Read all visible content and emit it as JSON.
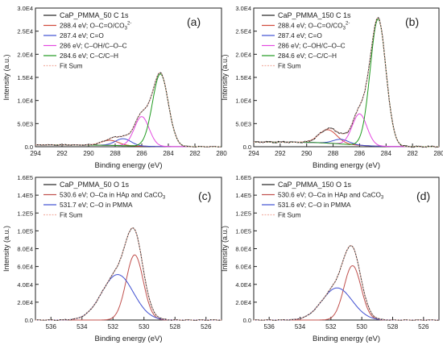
{
  "chart_data": [
    {
      "type": "line",
      "panel_label": "(a)",
      "xlabel": "Binding energy (eV)",
      "ylabel": "Intensity (a.u.)",
      "xlim": [
        294,
        280
      ],
      "ylim": [
        0,
        30000
      ],
      "xticks": [
        294,
        292,
        290,
        288,
        286,
        284,
        282,
        280
      ],
      "yticks": [
        0,
        5000,
        10000,
        15000,
        20000,
        25000,
        30000
      ],
      "ytick_labels": [
        "0.0",
        "5.0E3",
        "1.0E4",
        "1.5E4",
        "2.0E4",
        "2.5E4",
        "3.0E4"
      ],
      "legend_title": "CaP_PMMA_50 C 1s",
      "legend_loc": "top-left",
      "series": [
        {
          "name": "288.4 eV; O–C=O/CO",
          "name_sup": "3",
          "name_sup2": "2-",
          "color": "#d14a3b",
          "center": 288.4,
          "amplitude": 1100,
          "fwhm": 1.5,
          "draw": true
        },
        {
          "name": "287.4 eV; C=O",
          "color": "#3f4fd1",
          "center": 287.4,
          "amplitude": 1500,
          "fwhm": 1.4,
          "draw": true
        },
        {
          "name": "286 eV; C–OH/C–O–C",
          "color": "#e44ae0",
          "center": 286.0,
          "amplitude": 6400,
          "fwhm": 1.3,
          "draw": true
        },
        {
          "name": "284.6 eV; C–C/C–H",
          "color": "#1f9a1f",
          "center": 284.6,
          "amplitude": 15700,
          "fwhm": 1.4,
          "draw": true
        },
        {
          "name": "Fit Sum",
          "color": "#f2b4a8",
          "is_sum": true
        }
      ],
      "data_color": "#222222",
      "data_label": "CaP_PMMA_50 C 1s"
    },
    {
      "type": "line",
      "panel_label": "(b)",
      "xlabel": "Binding energy (eV)",
      "ylabel": "Intensity (a.u.)",
      "xlim": [
        294,
        280
      ],
      "ylim": [
        0,
        30000
      ],
      "xticks": [
        294,
        292,
        290,
        288,
        286,
        284,
        282,
        280
      ],
      "yticks": [
        0,
        5000,
        10000,
        15000,
        20000,
        25000,
        30000
      ],
      "ytick_labels": [
        "0.0",
        "5.0E3",
        "1.0E4",
        "1.5E4",
        "2.0E4",
        "2.5E4",
        "3.0E4"
      ],
      "legend_title": "CaP_PMMA_150 C 1s",
      "legend_loc": "top-left",
      "series": [
        {
          "name": "288.4 eV; O–C=O/CO",
          "name_sup": "3",
          "name_sup2": "2-",
          "color": "#d14a3b",
          "center": 288.4,
          "amplitude": 2900,
          "fwhm": 1.6,
          "draw": true
        },
        {
          "name": "287.4 eV; C=O",
          "color": "#3f4fd1",
          "center": 287.4,
          "amplitude": 1000,
          "fwhm": 1.4,
          "draw": true
        },
        {
          "name": "286 eV; C–OH/C–O–C",
          "color": "#e44ae0",
          "center": 286.0,
          "amplitude": 6800,
          "fwhm": 1.3,
          "draw": true
        },
        {
          "name": "284.6 eV; C–C/C–H",
          "color": "#1f9a1f",
          "center": 284.6,
          "amplitude": 27500,
          "fwhm": 1.4,
          "draw": true
        },
        {
          "name": "Fit Sum",
          "color": "#f2b4a8",
          "is_sum": true
        }
      ],
      "data_color": "#222222",
      "data_label": "CaP_PMMA_150 C 1s"
    },
    {
      "type": "line",
      "panel_label": "(c)",
      "xlabel": "Binding energy (eV)",
      "ylabel": "Intensity (a.u.)",
      "xlim": [
        537,
        525
      ],
      "ylim": [
        0,
        160000
      ],
      "xticks": [
        536,
        534,
        532,
        530,
        528,
        526
      ],
      "yticks": [
        0,
        20000,
        40000,
        60000,
        80000,
        100000,
        120000,
        140000,
        160000
      ],
      "ytick_labels": [
        "0.0",
        "2.0E4",
        "4.0E4",
        "6.0E4",
        "8.0E4",
        "1.0E5",
        "1.2E5",
        "1.4E5",
        "1.6E5"
      ],
      "legend_title": "CaP_PMMA_50 O 1s",
      "legend_loc": "top-left",
      "series": [
        {
          "name": "530.6 eV; O–Ca in HAp and CaCO",
          "name_sub": "3",
          "color": "#c0504d",
          "center": 530.6,
          "amplitude": 73000,
          "fwhm": 1.3,
          "draw": true
        },
        {
          "name": "531.7 eV; C–O in PMMA",
          "color": "#3f4fd1",
          "center": 531.7,
          "amplitude": 51000,
          "fwhm": 2.4,
          "draw": true
        },
        {
          "name": "Fit Sum",
          "color": "#f2b4a8",
          "is_sum": true
        }
      ],
      "data_color": "#222222",
      "data_label": "CaP_PMMA_50 O 1s"
    },
    {
      "type": "line",
      "panel_label": "(d)",
      "xlabel": "Binding energy (eV)",
      "ylabel": "Intensity (a.u.)",
      "xlim": [
        537,
        525
      ],
      "ylim": [
        0,
        160000
      ],
      "xticks": [
        536,
        534,
        532,
        530,
        528,
        526
      ],
      "yticks": [
        0,
        20000,
        40000,
        60000,
        80000,
        100000,
        120000,
        140000,
        160000
      ],
      "ytick_labels": [
        "0.0",
        "2.0E4",
        "4.0E4",
        "6.0E4",
        "8.0E4",
        "1.0E5",
        "1.2E5",
        "1.4E5",
        "1.6E5"
      ],
      "legend_title": "CaP_PMMA_150 O 1s",
      "legend_loc": "top-left",
      "series": [
        {
          "name": "530.6 eV; O–Ca in HAp and CaCO",
          "name_sub": "3",
          "color": "#c0504d",
          "center": 530.6,
          "amplitude": 61000,
          "fwhm": 1.3,
          "draw": true
        },
        {
          "name": "531.6 eV; C–O in PMMA",
          "color": "#3f4fd1",
          "center": 531.6,
          "amplitude": 36000,
          "fwhm": 2.3,
          "draw": true
        },
        {
          "name": "Fit Sum",
          "color": "#f2b4a8",
          "is_sum": true
        }
      ],
      "data_color": "#222222",
      "data_label": "CaP_PMMA_150 O 1s"
    }
  ]
}
